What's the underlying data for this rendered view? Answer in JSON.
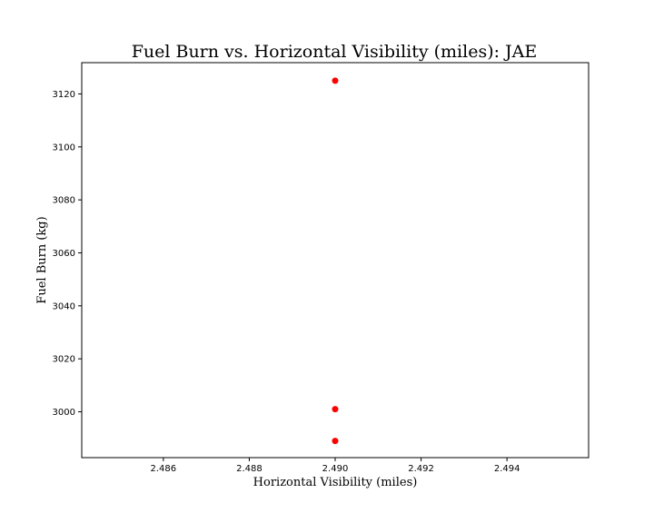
{
  "chart_data": {
    "type": "scatter",
    "title": "Fuel Burn vs. Horizontal Visibility (miles): JAE",
    "xlabel": "Horizontal Visibility (miles)",
    "ylabel": "Fuel Burn (kg)",
    "xlim": [
      2.4841,
      2.4959
    ],
    "ylim": [
      2982.7,
      3131.8
    ],
    "xticks": [
      "2.486",
      "2.488",
      "2.490",
      "2.492",
      "2.494"
    ],
    "yticks": [
      "3000",
      "3020",
      "3040",
      "3060",
      "3080",
      "3100",
      "3120"
    ],
    "grid": false,
    "point_color": "#ff0000",
    "points": [
      {
        "x": 2.49,
        "y": 3125
      },
      {
        "x": 2.49,
        "y": 3001
      },
      {
        "x": 2.49,
        "y": 2989
      }
    ]
  }
}
